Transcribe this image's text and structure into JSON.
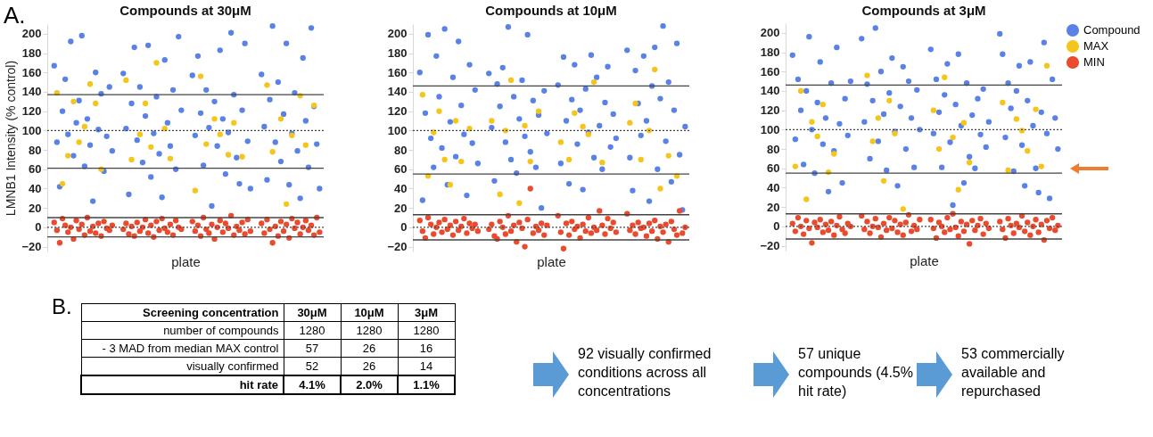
{
  "chart_data": [
    {
      "type": "scatter",
      "title": "Compounds at 30μM",
      "xlabel": "plate",
      "ylabel": "LMNB1 Intensity (% control)",
      "annotations": [
        "A."
      ],
      "marker": "circle",
      "tick_labels": "y",
      "ylim": [
        -25,
        210
      ],
      "yticks": [
        -20,
        0,
        20,
        40,
        60,
        80,
        100,
        120,
        140,
        160,
        180,
        200
      ],
      "categories": [
        null,
        null,
        null,
        null,
        null,
        null,
        null,
        null,
        null,
        null,
        null,
        null,
        null,
        null,
        null,
        null,
        null,
        null,
        null,
        null,
        null,
        null,
        null,
        null,
        null,
        null,
        null,
        null,
        null,
        null,
        null,
        null,
        null,
        null,
        null,
        null,
        null,
        null,
        null,
        null,
        null,
        null,
        null,
        null,
        null,
        null,
        null,
        null,
        null,
        null,
        null,
        null,
        null,
        null,
        null,
        null,
        null,
        null,
        null,
        null,
        null,
        null,
        null,
        null,
        null,
        null,
        null,
        null,
        null,
        null,
        null,
        null,
        null,
        null,
        null,
        null,
        null,
        null,
        null,
        null,
        null,
        null,
        null,
        null,
        null,
        null,
        null,
        null,
        null,
        null,
        null,
        null,
        null,
        null,
        null,
        null,
        null,
        null,
        null,
        null
      ],
      "ref_lines": [
        {
          "axis": "y",
          "value": 137,
          "line_style": "solid"
        },
        {
          "axis": "y",
          "value": 61,
          "line_style": "solid"
        },
        {
          "axis": "y",
          "value": 10,
          "line_style": "solid"
        },
        {
          "axis": "y",
          "value": -10,
          "line_style": "solid"
        },
        {
          "axis": "y",
          "value": 100,
          "line_style": "dotted"
        },
        {
          "axis": "y",
          "value": 0,
          "line_style": "dotted"
        }
      ],
      "series": [
        {
          "color": "#5a82e6",
          "values": [
            null,
            null,
            167,
            88,
            42,
            120,
            153,
            96,
            192,
            74,
            108,
            131,
            198,
            63,
            112,
            85,
            27,
            160,
            101,
            138,
            58,
            94,
            145,
            79,
            null,
            null,
            null,
            159,
            102,
            34,
            128,
            186,
            90,
            145,
            67,
            115,
            188,
            52,
            97,
            135,
            76,
            31,
            173,
            108,
            84,
            142,
            60,
            197,
            121,
            null,
            null,
            null,
            157,
            95,
            177,
            118,
            64,
            142,
            103,
            22,
            130,
            84,
            183,
            112,
            55,
            98,
            201,
            137,
            72,
            45,
            121,
            190,
            89,
            40,
            null,
            null,
            null,
            158,
            104,
            49,
            132,
            208,
            88,
            150,
            68,
            117,
            190,
            44,
            97,
            139,
            79,
            30,
            175,
            110,
            62,
            206,
            125,
            86,
            40,
            null
          ]
        },
        {
          "color": "#f5c51c",
          "values": [
            null,
            null,
            null,
            139,
            null,
            45,
            null,
            74,
            null,
            130,
            null,
            88,
            null,
            104,
            null,
            148,
            null,
            128,
            null,
            60,
            null,
            null,
            null,
            null,
            null,
            null,
            null,
            null,
            152,
            null,
            70,
            null,
            null,
            96,
            null,
            128,
            null,
            83,
            null,
            170,
            null,
            null,
            102,
            null,
            71,
            null,
            null,
            null,
            null,
            null,
            null,
            null,
            null,
            38,
            null,
            156,
            null,
            86,
            null,
            null,
            112,
            null,
            96,
            null,
            null,
            75,
            null,
            108,
            null,
            null,
            73,
            null,
            null,
            null,
            null,
            null,
            null,
            null,
            null,
            147,
            null,
            78,
            null,
            null,
            112,
            null,
            24,
            null,
            95,
            null,
            null,
            136,
            null,
            85,
            null,
            null,
            126,
            null,
            null,
            null
          ]
        },
        {
          "color": "#ea4a2e",
          "values": [
            null,
            null,
            5,
            -3,
            -16,
            9,
            2,
            -5,
            0,
            -12,
            7,
            -2,
            3,
            -8,
            10,
            -4,
            1,
            -6,
            4,
            -9,
            6,
            -1,
            -3,
            2,
            null,
            null,
            null,
            -2,
            4,
            -7,
            1,
            -9,
            5,
            -4,
            0,
            8,
            -6,
            2,
            -10,
            6,
            -3,
            9,
            -1,
            -5,
            3,
            -8,
            7,
            0,
            -2,
            null,
            null,
            null,
            6,
            -4,
            2,
            -9,
            10,
            -2,
            -6,
            3,
            -12,
            0,
            7,
            -5,
            4,
            -1,
            12,
            -8,
            1,
            -3,
            5,
            -7,
            8,
            -4,
            null,
            null,
            null,
            4,
            -6,
            8,
            -2,
            -16,
            1,
            -9,
            6,
            -4,
            3,
            -11,
            9,
            -1,
            5,
            -7,
            0,
            7,
            -3,
            2,
            -8,
            10,
            -5,
            null
          ]
        }
      ]
    },
    {
      "type": "scatter",
      "title": "Compounds at 10μM",
      "xlabel": "plate",
      "marker": "circle",
      "tick_labels": "y",
      "ylim": [
        -25,
        210
      ],
      "yticks": [
        -20,
        0,
        20,
        40,
        60,
        80,
        100,
        120,
        140,
        160,
        180,
        200
      ],
      "categories": [
        null,
        null,
        null,
        null,
        null,
        null,
        null,
        null,
        null,
        null,
        null,
        null,
        null,
        null,
        null,
        null,
        null,
        null,
        null,
        null,
        null,
        null,
        null,
        null,
        null,
        null,
        null,
        null,
        null,
        null,
        null,
        null,
        null,
        null,
        null,
        null,
        null,
        null,
        null,
        null,
        null,
        null,
        null,
        null,
        null,
        null,
        null,
        null,
        null,
        null,
        null,
        null,
        null,
        null,
        null,
        null,
        null,
        null,
        null,
        null,
        null,
        null,
        null,
        null,
        null,
        null,
        null,
        null,
        null,
        null,
        null,
        null,
        null,
        null,
        null,
        null,
        null,
        null,
        null,
        null,
        null,
        null,
        null,
        null,
        null,
        null,
        null,
        null,
        null,
        null,
        null,
        null,
        null,
        null,
        null,
        null,
        null,
        null,
        null,
        null
      ],
      "ref_lines": [
        {
          "axis": "y",
          "value": 146,
          "line_style": "solid"
        },
        {
          "axis": "y",
          "value": 55,
          "line_style": "solid"
        },
        {
          "axis": "y",
          "value": 13,
          "line_style": "solid"
        },
        {
          "axis": "y",
          "value": -13,
          "line_style": "solid"
        },
        {
          "axis": "y",
          "value": 100,
          "line_style": "dotted"
        },
        {
          "axis": "y",
          "value": 0,
          "line_style": "dotted"
        }
      ],
      "series": [
        {
          "color": "#5a82e6",
          "values": [
            null,
            null,
            160,
            28,
            118,
            199,
            92,
            62,
            177,
            135,
            82,
            205,
            44,
            109,
            155,
            73,
            192,
            126,
            96,
            33,
            168,
            87,
            142,
            66,
            null,
            null,
            null,
            159,
            103,
            48,
            148,
            125,
            165,
            88,
            207,
            70,
            135,
            56,
            112,
            152,
            94,
            199,
            78,
            131,
            62,
            116,
            20,
            141,
            97,
            null,
            null,
            null,
            147,
            66,
            176,
            110,
            45,
            132,
            168,
            86,
            121,
            39,
            143,
            98,
            178,
            72,
            155,
            105,
            60,
            129,
            166,
            83,
            117,
            92,
            null,
            null,
            null,
            183,
            72,
            38,
            162,
            128,
            95,
            177,
            110,
            27,
            146,
            186,
            60,
            133,
            208,
            89,
            150,
            47,
            121,
            190,
            75,
            18,
            104,
            null
          ]
        },
        {
          "color": "#f5c51c",
          "values": [
            null,
            null,
            null,
            137,
            null,
            53,
            null,
            98,
            null,
            120,
            null,
            70,
            null,
            44,
            null,
            110,
            null,
            68,
            null,
            null,
            102,
            null,
            null,
            null,
            null,
            null,
            null,
            null,
            110,
            null,
            null,
            34,
            null,
            100,
            null,
            152,
            null,
            null,
            25,
            null,
            105,
            null,
            68,
            null,
            null,
            120,
            null,
            null,
            null,
            null,
            null,
            null,
            null,
            88,
            null,
            null,
            70,
            null,
            118,
            null,
            null,
            104,
            null,
            96,
            null,
            150,
            null,
            null,
            67,
            null,
            null,
            null,
            null,
            null,
            null,
            null,
            null,
            null,
            108,
            null,
            128,
            null,
            70,
            null,
            null,
            100,
            null,
            163,
            null,
            40,
            null,
            null,
            74,
            null,
            null,
            53,
            null,
            null,
            null,
            null
          ]
        },
        {
          "color": "#ea4a2e",
          "values": [
            null,
            null,
            7,
            -4,
            -11,
            10,
            3,
            -7,
            0,
            5,
            -5,
            8,
            -2,
            2,
            -8,
            6,
            -3,
            1,
            9,
            -6,
            4,
            -1,
            3,
            -4,
            null,
            null,
            null,
            -2,
            3,
            -9,
            -12,
            6,
            0,
            -7,
            12,
            -4,
            2,
            -15,
            5,
            -1,
            -20,
            8,
            40,
            -6,
            1,
            -3,
            4,
            -8,
            2,
            null,
            null,
            null,
            12,
            -5,
            -22,
            4,
            -8,
            6,
            -2,
            1,
            -11,
            3,
            -4,
            10,
            -6,
            0,
            -3,
            17,
            2,
            -7,
            9,
            -1,
            5,
            -5,
            null,
            null,
            null,
            14,
            -3,
            2,
            -7,
            5,
            -1,
            0,
            -9,
            4,
            -4,
            7,
            -12,
            1,
            -5,
            3,
            -15,
            6,
            -2,
            -8,
            17,
            -6,
            0,
            null
          ]
        }
      ]
    },
    {
      "type": "scatter",
      "title": "Compounds at 3μM",
      "xlabel": "plate",
      "marker": "circle",
      "tick_labels": "y",
      "legend": "top right",
      "ylim": [
        -25,
        210
      ],
      "yticks": [
        -20,
        0,
        20,
        40,
        60,
        80,
        100,
        120,
        140,
        160,
        180,
        200
      ],
      "categories": [
        null,
        null,
        null,
        null,
        null,
        null,
        null,
        null,
        null,
        null,
        null,
        null,
        null,
        null,
        null,
        null,
        null,
        null,
        null,
        null,
        null,
        null,
        null,
        null,
        null,
        null,
        null,
        null,
        null,
        null,
        null,
        null,
        null,
        null,
        null,
        null,
        null,
        null,
        null,
        null,
        null,
        null,
        null,
        null,
        null,
        null,
        null,
        null,
        null,
        null,
        null,
        null,
        null,
        null,
        null,
        null,
        null,
        null,
        null,
        null,
        null,
        null,
        null,
        null,
        null,
        null,
        null,
        null,
        null,
        null,
        null,
        null,
        null,
        null,
        null,
        null,
        null,
        null,
        null,
        null,
        null,
        null,
        null,
        null,
        null,
        null,
        null,
        null,
        null,
        null,
        null,
        null,
        null,
        null,
        null,
        null,
        null,
        null,
        null,
        null
      ],
      "ref_lines": [
        {
          "axis": "y",
          "value": 146,
          "line_style": "solid"
        },
        {
          "axis": "y",
          "value": 55,
          "line_style": "solid"
        },
        {
          "axis": "y",
          "value": 13,
          "line_style": "solid"
        },
        {
          "axis": "y",
          "value": -13,
          "line_style": "solid"
        },
        {
          "axis": "y",
          "value": 100,
          "line_style": "dotted"
        },
        {
          "axis": "y",
          "value": 0,
          "line_style": "dotted"
        }
      ],
      "series": [
        {
          "name": "Compound",
          "color": "#5a82e6",
          "values": [
            null,
            null,
            177,
            90,
            152,
            120,
            64,
            140,
            196,
            100,
            55,
            128,
            170,
            85,
            112,
            36,
            148,
            78,
            185,
            106,
            45,
            132,
            94,
            150,
            null,
            null,
            null,
            194,
            108,
            147,
            70,
            130,
            205,
            88,
            160,
            116,
            58,
            138,
            174,
            98,
            42,
            124,
            165,
            80,
            150,
            112,
            61,
            141,
            100,
            null,
            null,
            null,
            183,
            96,
            152,
            118,
            61,
            136,
            168,
            87,
            22,
            126,
            178,
            104,
            45,
            148,
            72,
            115,
            60,
            132,
            95,
            142,
            82,
            108,
            null,
            null,
            null,
            199,
            178,
            92,
            148,
            122,
            57,
            140,
            166,
            84,
            42,
            130,
            170,
            104,
            60,
            35,
            118,
            190,
            96,
            29,
            152,
            112,
            80,
            null
          ]
        },
        {
          "name": "MAX",
          "color": "#f5c51c",
          "values": [
            null,
            null,
            null,
            62,
            null,
            140,
            null,
            28,
            null,
            108,
            null,
            93,
            null,
            126,
            null,
            56,
            null,
            75,
            null,
            null,
            null,
            null,
            null,
            null,
            null,
            null,
            null,
            null,
            null,
            156,
            null,
            88,
            null,
            112,
            null,
            47,
            null,
            130,
            null,
            96,
            null,
            null,
            18,
            null,
            null,
            null,
            null,
            null,
            null,
            null,
            null,
            null,
            null,
            120,
            null,
            80,
            null,
            154,
            null,
            null,
            92,
            null,
            38,
            null,
            107,
            null,
            66,
            null,
            null,
            null,
            null,
            null,
            null,
            null,
            null,
            null,
            null,
            null,
            128,
            null,
            58,
            null,
            null,
            111,
            null,
            99,
            null,
            78,
            null,
            null,
            121,
            null,
            62,
            null,
            166,
            null,
            null,
            null,
            null,
            null
          ]
        },
        {
          "name": "MIN",
          "color": "#ea4a2e",
          "values": [
            null,
            null,
            3,
            -5,
            9,
            0,
            -8,
            6,
            -2,
            -17,
            4,
            -1,
            7,
            -6,
            2,
            -4,
            5,
            -9,
            1,
            10,
            -3,
            -7,
            3,
            0,
            null,
            null,
            null,
            11,
            -3,
            5,
            -7,
            0,
            8,
            -1,
            -11,
            3,
            -4,
            9,
            -2,
            6,
            -6,
            2,
            -9,
            4,
            12,
            -5,
            1,
            -3,
            7,
            null,
            null,
            null,
            7,
            -2,
            -12,
            4,
            0,
            -6,
            9,
            -3,
            13,
            -1,
            -10,
            5,
            -5,
            2,
            -18,
            6,
            -4,
            1,
            8,
            -8,
            3,
            -2,
            null,
            null,
            null,
            5,
            -3,
            -12,
            8,
            1,
            -7,
            3,
            -1,
            11,
            -5,
            4,
            -9,
            0,
            7,
            -6,
            2,
            -14,
            6,
            -2,
            9,
            -4,
            1,
            null
          ]
        }
      ]
    },
    {
      "type": "other",
      "annotations": [
        "B.",
        "Screening concentration",
        "30μM",
        "10μM",
        "3μM",
        "number of compounds",
        "1280",
        "1280",
        "1280",
        "- 3 MAD from median MAX control",
        "57",
        "26",
        "16",
        "visually confirmed",
        "52",
        "26",
        "14",
        "hit rate",
        "4.1%",
        "2.0%",
        "1.1%",
        "92 visually confirmed conditions across all concentrations",
        "57 unique compounds (4.5% hit rate)",
        "53 commercially available and repurchased"
      ]
    }
  ]
}
